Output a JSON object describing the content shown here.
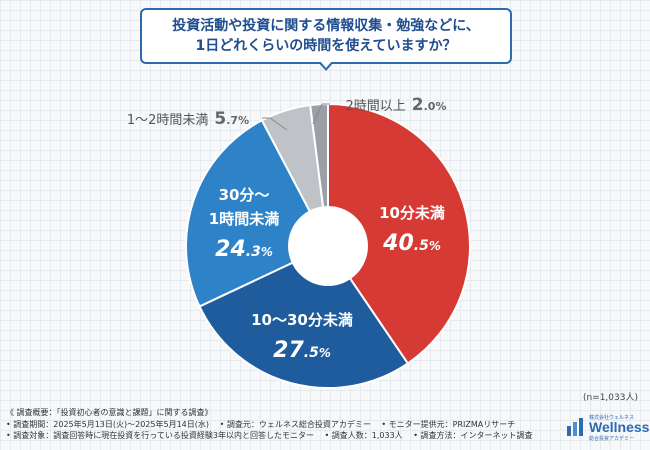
{
  "title": {
    "line1": "投資活動や投資に関する情報収集・勉強などに、",
    "line2": "1日どれくらいの時間を使えていますか？"
  },
  "chart_data": {
    "type": "pie",
    "donut": true,
    "slices": [
      {
        "label": "10分未満",
        "value": 40.5,
        "color": "#d63a35"
      },
      {
        "label": "10〜30分未満",
        "value": 27.5,
        "color": "#1f5c9e"
      },
      {
        "label": "30分〜1時間未満",
        "value": 24.3,
        "color": "#2e82c8"
      },
      {
        "label": "1〜2時間未満",
        "value": 5.7,
        "color": "#bfc3c8"
      },
      {
        "label": "2時間以上",
        "value": 2.0,
        "color": "#9aa0a6"
      }
    ],
    "value_labels": [
      "40.5%",
      "27.5%",
      "24.3%",
      "5.7%",
      "2.0%"
    ]
  },
  "labels": {
    "s0": {
      "name": "10分未満",
      "int": "40",
      "dec": ".5",
      "pct": "%"
    },
    "s1": {
      "name": "10〜30分未満",
      "int": "27",
      "dec": ".5",
      "pct": "%"
    },
    "s2": {
      "name1": "30分〜",
      "name2": "1時間未満",
      "int": "24",
      "dec": ".3",
      "pct": "%"
    },
    "s3": {
      "name": "1〜2時間未満",
      "int": "5",
      "dec": ".7",
      "pct": "%"
    },
    "s4": {
      "name": "2時間以上",
      "int": "2",
      "dec": ".0",
      "pct": "%"
    }
  },
  "n_note": "(n=1,033人)",
  "footer": {
    "line1": "《 調査概要：「投資初心者の意識と課題」に関する調査》",
    "line2a": "• 調査期間：2025年5月13日(火)〜2025年5月14日(水)",
    "line2b": "• 調査元：ウェルネス総合投資アカデミー",
    "line2c": "• モニター提供元：PRIZMAリサーチ",
    "line3a": "• 調査対象：調査回答時に現在投資を行っている投資経験3年以内と回答したモニター",
    "line3b": "• 調査人数：1,033人",
    "line3c": "• 調査方法：インターネット調査"
  },
  "logo": {
    "top": "株式会社ウェルネス",
    "brand": "Wellness",
    "bottom": "総合投資アカデミー"
  }
}
